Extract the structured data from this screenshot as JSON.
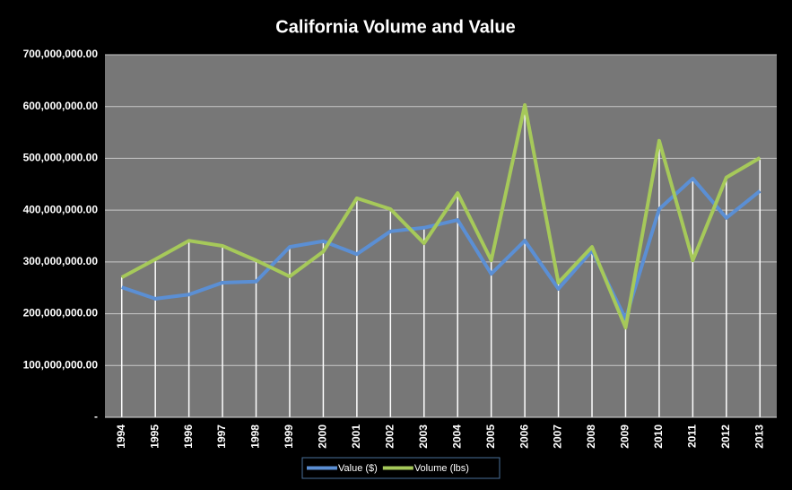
{
  "chart_data": {
    "type": "line",
    "title": "California Volume and Value",
    "categories": [
      "1994",
      "1995",
      "1996",
      "1997",
      "1998",
      "1999",
      "2000",
      "2001",
      "2002",
      "2003",
      "2004",
      "2005",
      "2006",
      "2007",
      "2008",
      "2009",
      "2010",
      "2011",
      "2012",
      "2013"
    ],
    "series": [
      {
        "name": "Value ($)",
        "color": "#5b8fd4",
        "values": [
          251000000,
          229000000,
          237000000,
          260000000,
          262000000,
          329000000,
          340000000,
          315000000,
          359000000,
          366000000,
          381000000,
          277000000,
          341000000,
          248000000,
          322000000,
          190000000,
          402000000,
          461000000,
          385000000,
          437000000
        ]
      },
      {
        "name": "Volume (lbs)",
        "color": "#a6c95a",
        "values": [
          270000000,
          305000000,
          341000000,
          331000000,
          303000000,
          272000000,
          320000000,
          423000000,
          402000000,
          336000000,
          433000000,
          303000000,
          603000000,
          260000000,
          329000000,
          173000000,
          534000000,
          303000000,
          463000000,
          501000000
        ]
      }
    ],
    "ylim": [
      0,
      700000000
    ],
    "yticks": [
      {
        "value": 0,
        "label": "-"
      },
      {
        "value": 100000000,
        "label": "100,000,000.00"
      },
      {
        "value": 200000000,
        "label": "200,000,000.00"
      },
      {
        "value": 300000000,
        "label": "300,000,000.00"
      },
      {
        "value": 400000000,
        "label": "400,000,000.00"
      },
      {
        "value": 500000000,
        "label": "500,000,000.00"
      },
      {
        "value": 600000000,
        "label": "600,000,000.00"
      },
      {
        "value": 700000000,
        "label": "700,000,000.00"
      }
    ],
    "grid": true,
    "legend": "bottom"
  }
}
